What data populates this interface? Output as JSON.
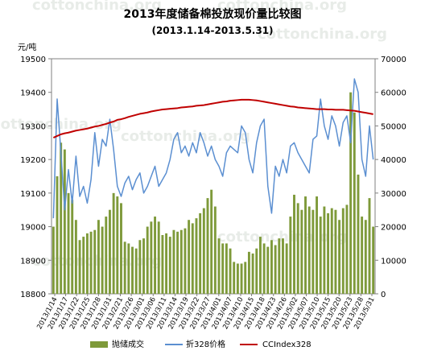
{
  "watermark": "cottonchina.org",
  "chart_data": {
    "type": "bar+line",
    "title": "2013年度储备棉投放现价量比较图",
    "subtitle": "(2013.1.14-2013.5.31)",
    "left_axis": {
      "label": "元/吨",
      "ylim": [
        18800,
        19500
      ],
      "ticks": [
        18800,
        18900,
        19000,
        19100,
        19200,
        19300,
        19400,
        19500
      ]
    },
    "right_axis": {
      "label": "",
      "ylim": [
        0,
        70000
      ],
      "ticks": [
        0,
        10000,
        20000,
        30000,
        40000,
        50000,
        60000,
        70000
      ]
    },
    "x_tick_labels": [
      "2013/1/14",
      "2013/1/17",
      "2013/1/22",
      "2013/1/25",
      "2013/1/28",
      "2013/1/31",
      "2013/2/21",
      "2013/2/26",
      "2013/3/01",
      "2013/3/06",
      "2013/3/11",
      "2013/3/14",
      "2013/3/19",
      "2013/3/22",
      "2013/3/27",
      "2013/4/01",
      "2013/4/07",
      "2013/4/10",
      "2013/4/15",
      "2013/4/18",
      "2013/4/23",
      "2013/4/26",
      "2013/5/02",
      "2013/5/07",
      "2013/5/10",
      "2013/5/15",
      "2013/5/20",
      "2013/5/23",
      "2013/5/28",
      "2013/5/31"
    ],
    "grid": false,
    "legend_position": "bottom",
    "series": [
      {
        "name": "抛储成交",
        "type": "bar",
        "axis": "right",
        "color": "#7e9a3a",
        "values": [
          20000,
          35000,
          45000,
          43000,
          30000,
          28000,
          22000,
          16000,
          17000,
          18000,
          18500,
          19000,
          22000,
          20000,
          23000,
          25000,
          30000,
          29000,
          27000,
          15500,
          15000,
          14000,
          13500,
          16000,
          16500,
          20000,
          21500,
          23000,
          21500,
          17500,
          18000,
          17000,
          19000,
          18500,
          19000,
          19500,
          22000,
          21000,
          22500,
          24000,
          25500,
          28500,
          31000,
          26000,
          16500,
          15000,
          15000,
          13500,
          9500,
          9000,
          9000,
          9500,
          12500,
          12000,
          13500,
          17000,
          15000,
          14000,
          16000,
          14500,
          16500,
          16500,
          15000,
          23000,
          29500,
          27000,
          25000,
          29000,
          26000,
          25000,
          29000,
          23000,
          26000,
          24000,
          25500,
          25000,
          22000,
          25500,
          26500,
          60000,
          54000,
          35500,
          23000,
          22000,
          28500,
          20000
        ]
      },
      {
        "name": "折328价格",
        "type": "line",
        "axis": "left",
        "color": "#5b8fd1",
        "values": [
          19025,
          19380,
          19220,
          19050,
          19170,
          19070,
          19210,
          19090,
          19120,
          19070,
          19140,
          19280,
          19180,
          19260,
          19240,
          19320,
          19230,
          19120,
          19090,
          19130,
          19150,
          19110,
          19140,
          19160,
          19100,
          19120,
          19150,
          19180,
          19120,
          19140,
          19160,
          19200,
          19260,
          19280,
          19220,
          19240,
          19210,
          19250,
          19220,
          19280,
          19250,
          19210,
          19240,
          19200,
          19180,
          19150,
          19220,
          19240,
          19230,
          19220,
          19300,
          19280,
          19200,
          19160,
          19250,
          19300,
          19320,
          19120,
          19040,
          19180,
          19150,
          19200,
          19160,
          19240,
          19250,
          19220,
          19200,
          19180,
          19160,
          19260,
          19270,
          19380,
          19300,
          19260,
          19330,
          19300,
          19240,
          19310,
          19330,
          19250,
          19440,
          19400,
          19200,
          19150,
          19300,
          19200
        ]
      },
      {
        "name": "CCIndex328",
        "type": "line",
        "axis": "left",
        "color": "#c00000",
        "values": [
          19265,
          19270,
          19275,
          19278,
          19280,
          19283,
          19286,
          19288,
          19290,
          19292,
          19295,
          19298,
          19300,
          19303,
          19306,
          19310,
          19313,
          19318,
          19320,
          19323,
          19327,
          19330,
          19333,
          19336,
          19338,
          19340,
          19343,
          19345,
          19347,
          19349,
          19350,
          19351,
          19352,
          19353,
          19355,
          19356,
          19357,
          19358,
          19360,
          19361,
          19362,
          19364,
          19366,
          19368,
          19370,
          19372,
          19373,
          19375,
          19376,
          19377,
          19378,
          19378,
          19378,
          19377,
          19376,
          19374,
          19372,
          19370,
          19368,
          19366,
          19364,
          19362,
          19360,
          19358,
          19357,
          19355,
          19354,
          19353,
          19352,
          19351,
          19350,
          19350,
          19350,
          19349,
          19349,
          19348,
          19348,
          19348,
          19347,
          19346,
          19345,
          19343,
          19341,
          19339,
          19337,
          19335
        ]
      }
    ]
  }
}
